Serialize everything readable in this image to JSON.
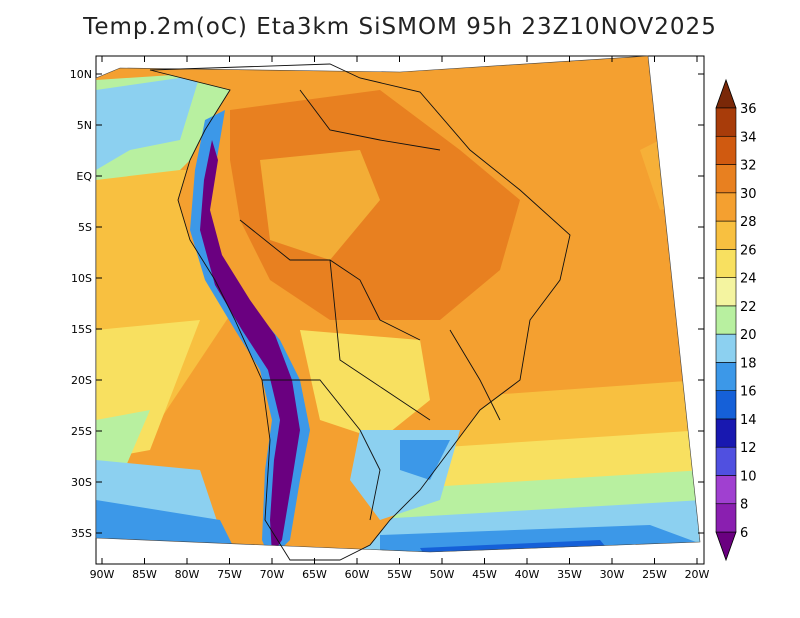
{
  "title": "Temp.2m(oC) Eta3km SiSMOM 95h 23Z10NOV2025",
  "lat_labels": [
    "10N",
    "5N",
    "EQ",
    "5S",
    "10S",
    "15S",
    "20S",
    "25S",
    "30S",
    "35S"
  ],
  "lon_labels": [
    "90W",
    "85W",
    "80W",
    "75W",
    "70W",
    "65W",
    "60W",
    "55W",
    "50W",
    "45W",
    "40W",
    "35W",
    "30W",
    "25W",
    "20W"
  ],
  "colorbar": {
    "labels": [
      "6",
      "8",
      "10",
      "12",
      "14",
      "16",
      "18",
      "20",
      "22",
      "24",
      "26",
      "28",
      "30",
      "32",
      "34",
      "36"
    ],
    "colors": [
      "#6a0080",
      "#8a1fb0",
      "#a040d0",
      "#5050e0",
      "#1818b0",
      "#1560d8",
      "#3c98e8",
      "#8cd0f0",
      "#b8f0a0",
      "#f4f4a0",
      "#f8e060",
      "#f8c040",
      "#f4a030",
      "#e88020",
      "#d05a10",
      "#a83c0a",
      "#7a2808"
    ]
  },
  "colors": {
    "ocean_warm": "#f4a030",
    "ocean_mid": "#f8c040",
    "ocean_cool": "#f8e060",
    "ocean_cold": "#b8f0a0",
    "ocean_colder": "#8cd0f0",
    "ocean_coldest": "#3c98e8",
    "land_hot": "#e88020",
    "andes": "#6a0080"
  }
}
